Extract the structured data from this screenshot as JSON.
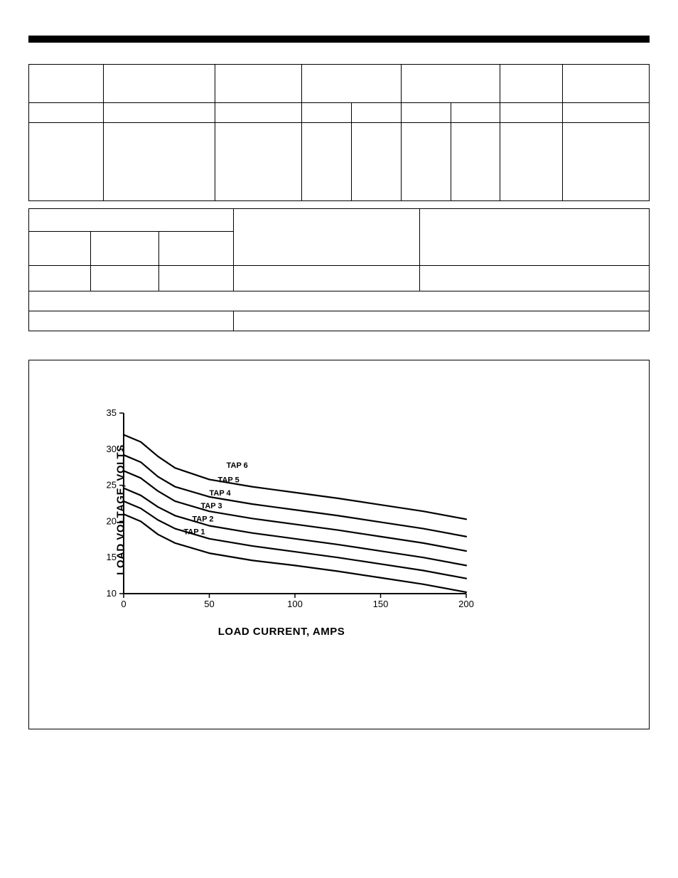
{
  "top_rule_color": "#000000",
  "spec_table": {
    "header_cols": 7,
    "sub_cols": 9,
    "body_cols": 9
  },
  "lower_table": {
    "row1_cols": 5,
    "row2_cols": 5,
    "row3_cols": 5,
    "row4_cols": 1,
    "row5_cols": 2
  },
  "chart": {
    "type": "line",
    "x_label": "LOAD CURRENT, AMPS",
    "y_label": "LOAD VOLTAGE, VOLTS",
    "xlim": [
      0,
      200
    ],
    "ylim": [
      10,
      35
    ],
    "x_ticks": [
      0,
      50,
      100,
      150,
      200
    ],
    "y_ticks": [
      10,
      15,
      20,
      25,
      30,
      35
    ],
    "tick_len": 6,
    "axis_color": "#000000",
    "line_color": "#000000",
    "line_width": 2.2,
    "background_color": "#ffffff",
    "tick_fontsize": 13,
    "label_fontsize": 15,
    "tap_fontsize": 11,
    "series": [
      {
        "name": "TAP 1",
        "label_x": 35,
        "label_y": 18.2,
        "points": [
          [
            0,
            21.0
          ],
          [
            10,
            20.0
          ],
          [
            20,
            18.2
          ],
          [
            30,
            17.0
          ],
          [
            50,
            15.6
          ],
          [
            75,
            14.6
          ],
          [
            100,
            13.9
          ],
          [
            125,
            13.1
          ],
          [
            150,
            12.2
          ],
          [
            175,
            11.3
          ],
          [
            200,
            10.2
          ]
        ]
      },
      {
        "name": "TAP 2",
        "label_x": 40,
        "label_y": 20.0,
        "points": [
          [
            0,
            22.8
          ],
          [
            10,
            21.8
          ],
          [
            20,
            20.2
          ],
          [
            30,
            19.0
          ],
          [
            50,
            17.6
          ],
          [
            75,
            16.6
          ],
          [
            100,
            15.8
          ],
          [
            125,
            15.0
          ],
          [
            150,
            14.1
          ],
          [
            175,
            13.2
          ],
          [
            200,
            12.1
          ]
        ]
      },
      {
        "name": "TAP 3",
        "label_x": 45,
        "label_y": 21.8,
        "points": [
          [
            0,
            24.6
          ],
          [
            10,
            23.6
          ],
          [
            20,
            22.0
          ],
          [
            30,
            20.8
          ],
          [
            50,
            19.4
          ],
          [
            75,
            18.4
          ],
          [
            100,
            17.6
          ],
          [
            125,
            16.8
          ],
          [
            150,
            15.9
          ],
          [
            175,
            15.0
          ],
          [
            200,
            13.9
          ]
        ]
      },
      {
        "name": "TAP 4",
        "label_x": 50,
        "label_y": 23.6,
        "points": [
          [
            0,
            27.0
          ],
          [
            10,
            26.0
          ],
          [
            20,
            24.2
          ],
          [
            30,
            22.8
          ],
          [
            50,
            21.4
          ],
          [
            75,
            20.4
          ],
          [
            100,
            19.6
          ],
          [
            125,
            18.8
          ],
          [
            150,
            17.9
          ],
          [
            175,
            17.0
          ],
          [
            200,
            15.9
          ]
        ]
      },
      {
        "name": "TAP 5",
        "label_x": 55,
        "label_y": 25.4,
        "points": [
          [
            0,
            29.2
          ],
          [
            10,
            28.2
          ],
          [
            20,
            26.2
          ],
          [
            30,
            24.8
          ],
          [
            50,
            23.4
          ],
          [
            75,
            22.4
          ],
          [
            100,
            21.6
          ],
          [
            125,
            20.8
          ],
          [
            150,
            19.9
          ],
          [
            175,
            19.0
          ],
          [
            200,
            17.9
          ]
        ]
      },
      {
        "name": "TAP 6",
        "label_x": 60,
        "label_y": 27.4,
        "points": [
          [
            0,
            32.0
          ],
          [
            10,
            31.0
          ],
          [
            20,
            29.0
          ],
          [
            30,
            27.4
          ],
          [
            50,
            25.8
          ],
          [
            75,
            24.8
          ],
          [
            100,
            24.0
          ],
          [
            125,
            23.2
          ],
          [
            150,
            22.3
          ],
          [
            175,
            21.4
          ],
          [
            200,
            20.3
          ]
        ]
      }
    ]
  }
}
